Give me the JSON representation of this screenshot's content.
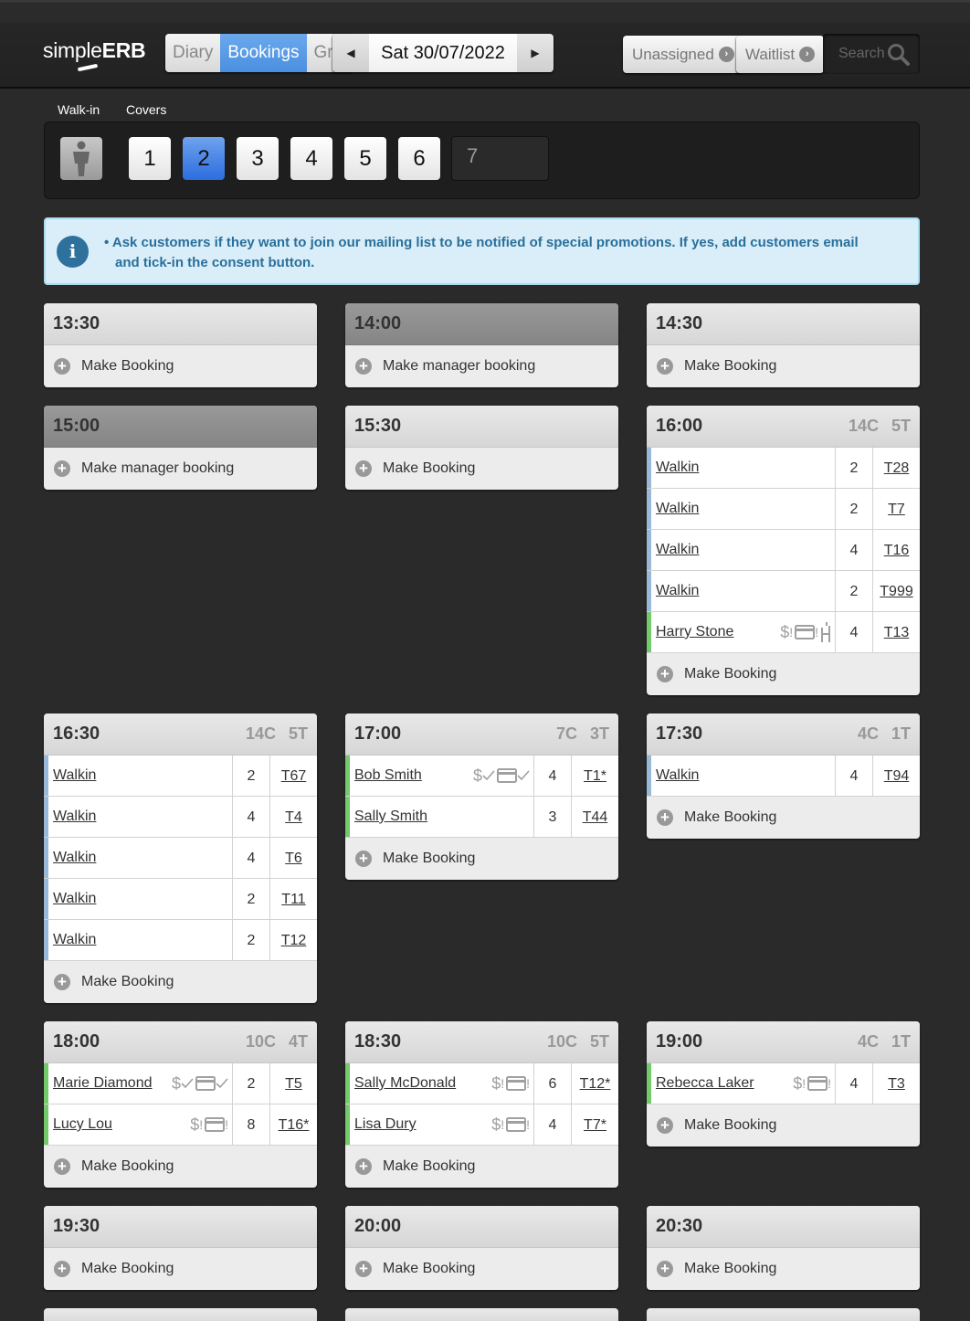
{
  "app": {
    "logo": "simpleERB",
    "logo_plain": "simple",
    "logo_bold": "ERB"
  },
  "nav": {
    "tabs": [
      {
        "label": "Diary",
        "active": false
      },
      {
        "label": "Bookings",
        "active": true
      },
      {
        "label": "Grid",
        "active": false
      }
    ]
  },
  "date": {
    "value": "Sat 30/07/2022"
  },
  "toolbar": {
    "unassigned": "Unassigned",
    "waitlist": "Waitlist",
    "search_placeholder": "Search"
  },
  "walkin": {
    "walkin_label": "Walk-in",
    "covers_label": "Covers",
    "covers": [
      "1",
      "2",
      "3",
      "4",
      "5",
      "6"
    ],
    "selected": "2",
    "custom_value": "7"
  },
  "info": {
    "message": "• Ask customers if they want to join our mailing list to be notified of special promotions. If yes, add customers email and tick-in the consent button."
  },
  "colors": {
    "walkin_bar": "#9ab8d8",
    "booking_bar": "#74c96b",
    "selected_cover": "#2c6ddf",
    "info_text": "#2a6f9b"
  },
  "slots": [
    {
      "time": "13:30",
      "action": "Make Booking",
      "manager": false,
      "bookings": []
    },
    {
      "time": "14:00",
      "action": "Make manager booking",
      "manager": true,
      "bookings": []
    },
    {
      "time": "14:30",
      "action": "Make Booking",
      "manager": false,
      "bookings": []
    },
    {
      "time": "15:00",
      "action": "Make manager booking",
      "manager": true,
      "bookings": []
    },
    {
      "time": "15:30",
      "action": "Make Booking",
      "manager": false,
      "bookings": []
    },
    {
      "time": "16:00",
      "covers": "14C",
      "tables": "5T",
      "action": "Make Booking",
      "manager": false,
      "bookings": [
        {
          "name": "Walkin",
          "covers": "2",
          "table": "T28",
          "type": "walkin",
          "icons": []
        },
        {
          "name": "Walkin",
          "covers": "2",
          "table": "T7",
          "type": "walkin",
          "icons": []
        },
        {
          "name": "Walkin",
          "covers": "4",
          "table": "T16",
          "type": "walkin",
          "icons": []
        },
        {
          "name": "Walkin",
          "covers": "2",
          "table": "T999",
          "type": "walkin",
          "icons": []
        },
        {
          "name": "Harry Stone",
          "covers": "4",
          "table": "T13",
          "type": "booking",
          "icons": [
            "dollar-alert",
            "card-alert",
            "highchair"
          ]
        }
      ]
    },
    {
      "time": "16:30",
      "covers": "14C",
      "tables": "5T",
      "action": "Make Booking",
      "manager": false,
      "bookings": [
        {
          "name": "Walkin",
          "covers": "2",
          "table": "T67",
          "type": "walkin",
          "icons": []
        },
        {
          "name": "Walkin",
          "covers": "4",
          "table": "T4",
          "type": "walkin",
          "icons": []
        },
        {
          "name": "Walkin",
          "covers": "4",
          "table": "T6",
          "type": "walkin",
          "icons": []
        },
        {
          "name": "Walkin",
          "covers": "2",
          "table": "T11",
          "type": "walkin",
          "icons": []
        },
        {
          "name": "Walkin",
          "covers": "2",
          "table": "T12",
          "type": "walkin",
          "icons": []
        }
      ]
    },
    {
      "time": "17:00",
      "covers": "7C",
      "tables": "3T",
      "action": "Make Booking",
      "manager": false,
      "bookings": [
        {
          "name": "Bob Smith",
          "covers": "4",
          "table": "T1*",
          "type": "booking",
          "icons": [
            "dollar-check",
            "card-check"
          ]
        },
        {
          "name": "Sally Smith",
          "covers": "3",
          "table": "T44",
          "type": "booking",
          "icons": []
        }
      ]
    },
    {
      "time": "17:30",
      "covers": "4C",
      "tables": "1T",
      "action": "Make Booking",
      "manager": false,
      "bookings": [
        {
          "name": "Walkin",
          "covers": "4",
          "table": "T94",
          "type": "walkin",
          "icons": []
        }
      ]
    },
    {
      "time": "18:00",
      "covers": "10C",
      "tables": "4T",
      "action": "Make Booking",
      "manager": false,
      "bookings": [
        {
          "name": "Marie Diamond",
          "covers": "2",
          "table": "T5",
          "type": "booking",
          "icons": [
            "dollar-check",
            "card-check"
          ]
        },
        {
          "name": "Lucy Lou",
          "covers": "8",
          "table": "T16*",
          "type": "booking",
          "icons": [
            "dollar-alert",
            "card-alert"
          ]
        }
      ]
    },
    {
      "time": "18:30",
      "covers": "10C",
      "tables": "5T",
      "action": "Make Booking",
      "manager": false,
      "bookings": [
        {
          "name": "Sally McDonald",
          "covers": "6",
          "table": "T12*",
          "type": "booking",
          "icons": [
            "dollar-alert",
            "card-alert"
          ]
        },
        {
          "name": "Lisa Dury",
          "covers": "4",
          "table": "T7*",
          "type": "booking",
          "icons": [
            "dollar-alert",
            "card-alert"
          ]
        }
      ]
    },
    {
      "time": "19:00",
      "covers": "4C",
      "tables": "1T",
      "action": "Make Booking",
      "manager": false,
      "bookings": [
        {
          "name": "Rebecca Laker",
          "covers": "4",
          "table": "T3",
          "type": "booking",
          "icons": [
            "dollar-alert",
            "card-alert"
          ]
        }
      ]
    },
    {
      "time": "19:30",
      "action": "Make Booking",
      "manager": false,
      "bookings": []
    },
    {
      "time": "20:00",
      "action": "Make Booking",
      "manager": false,
      "bookings": []
    },
    {
      "time": "20:30",
      "action": "Make Booking",
      "manager": false,
      "bookings": []
    }
  ]
}
